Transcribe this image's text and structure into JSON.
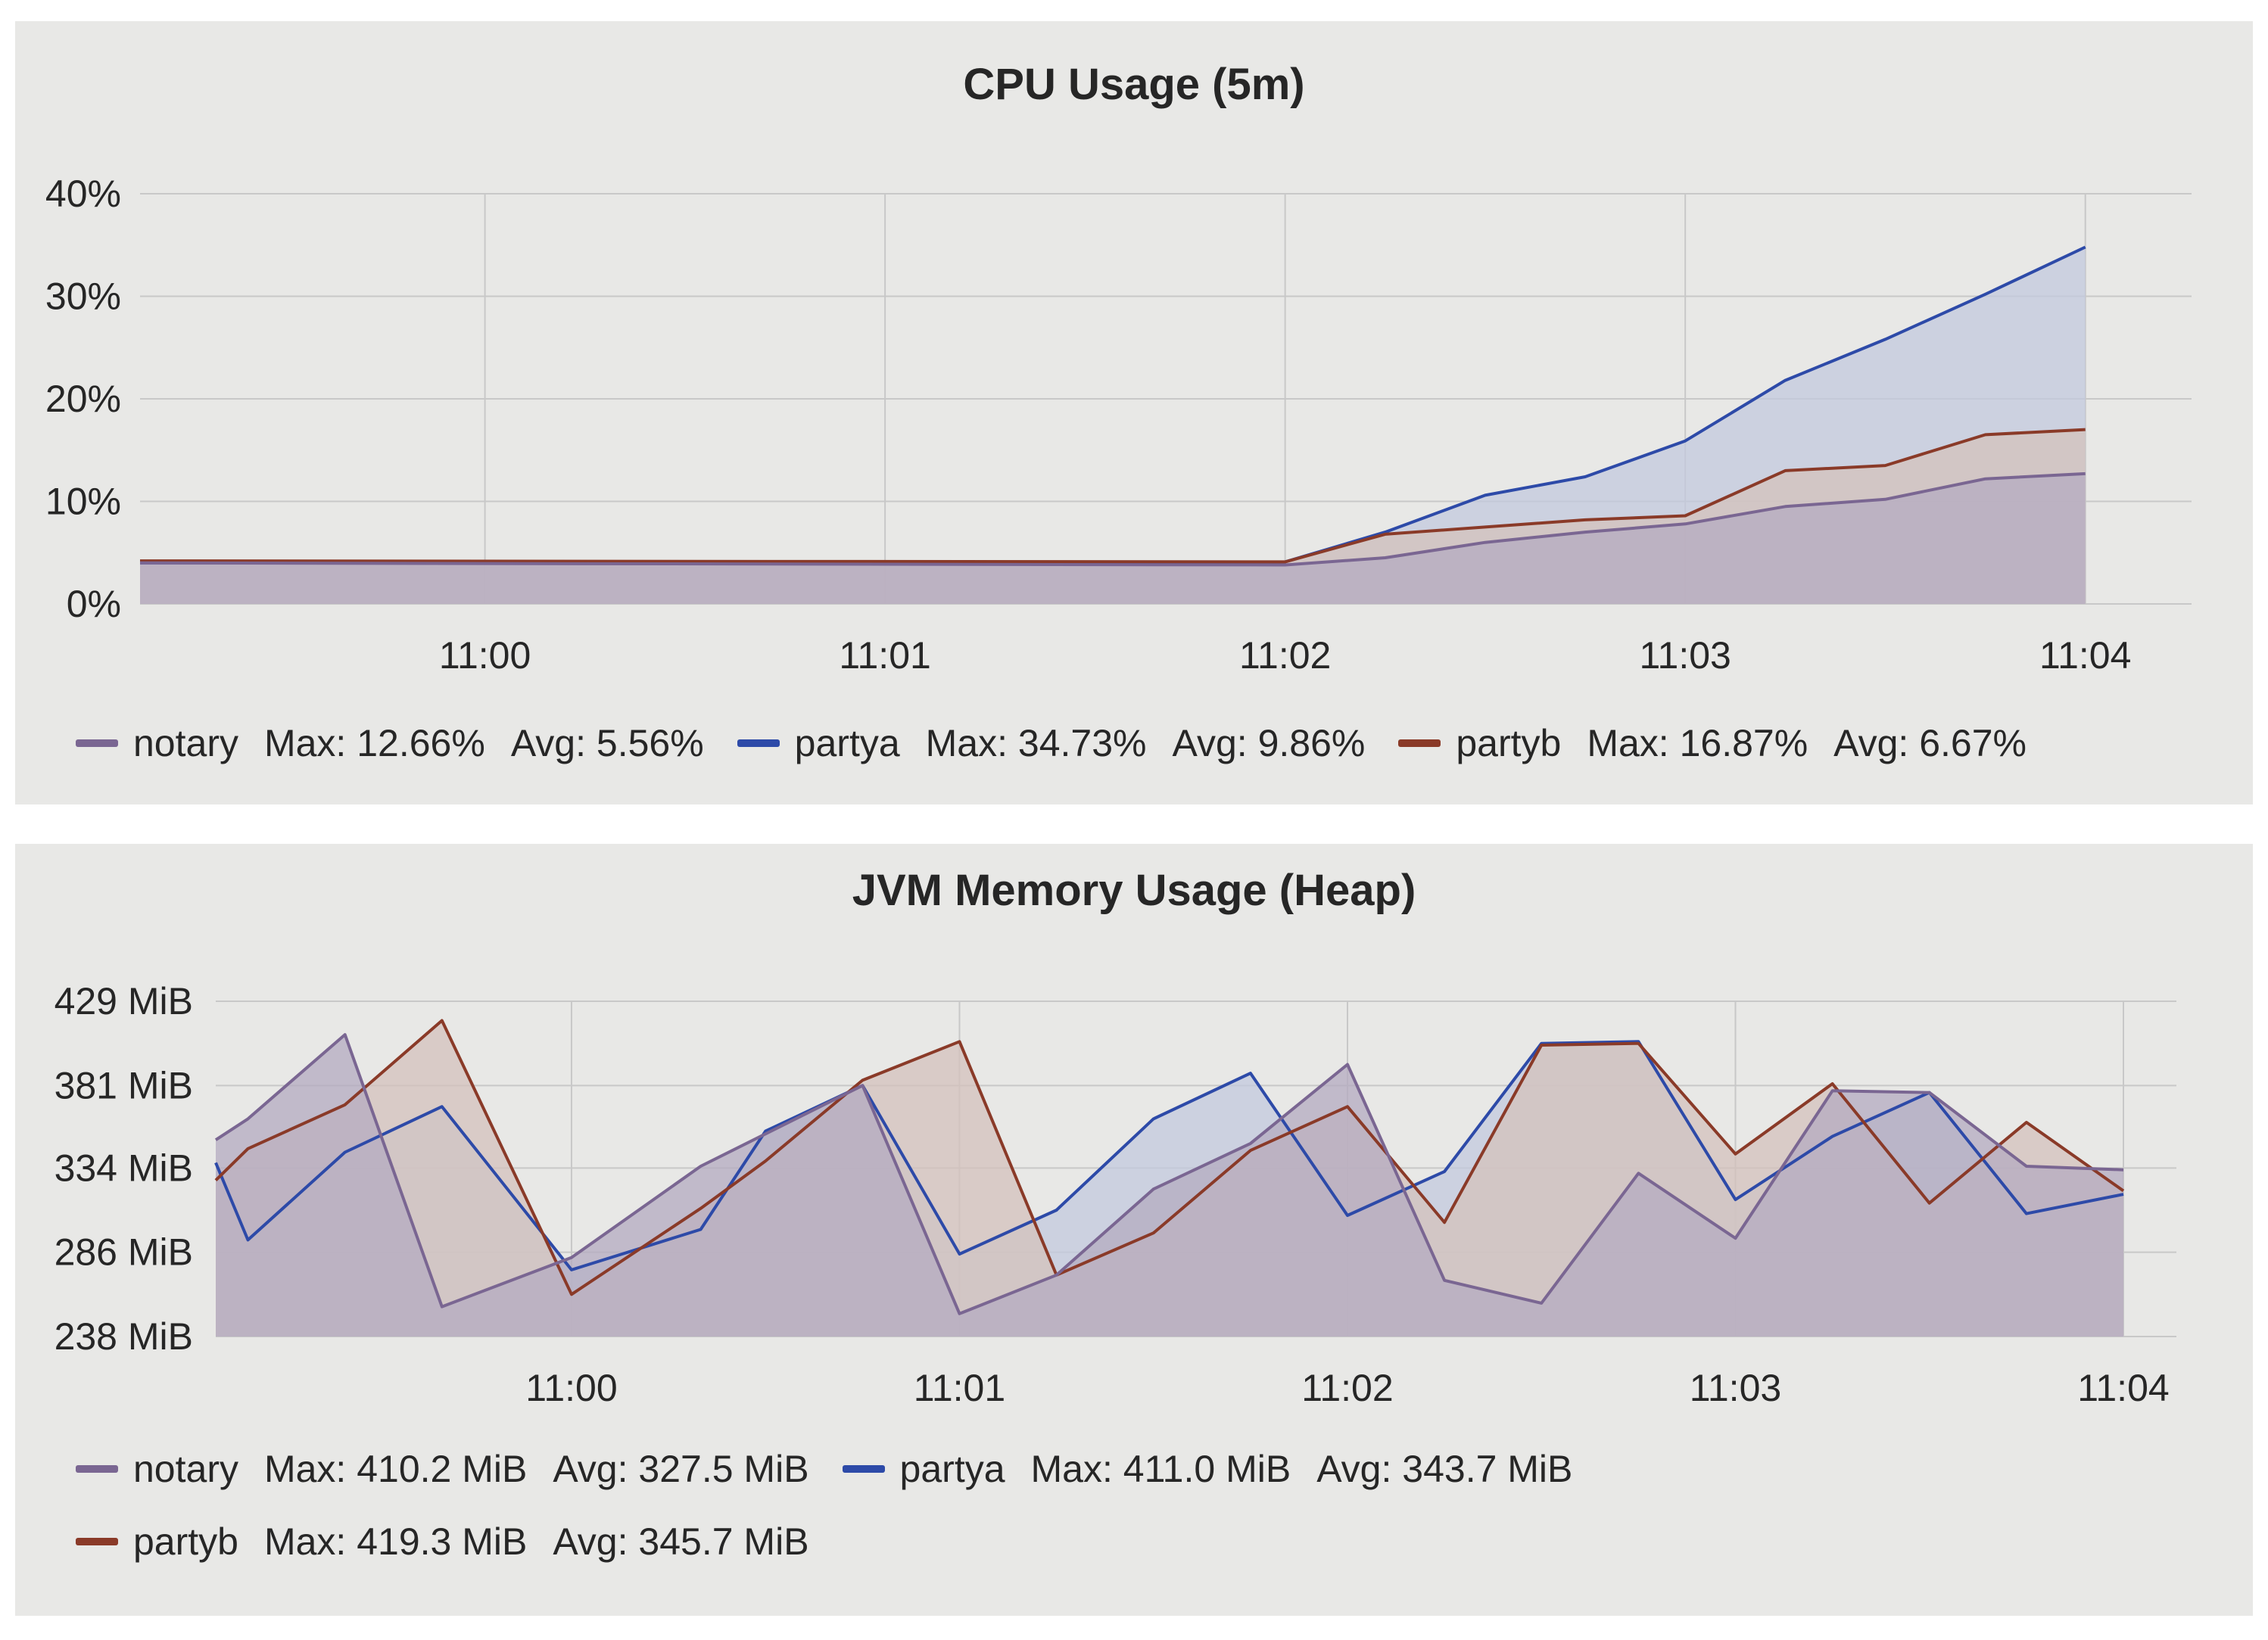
{
  "colors": {
    "notary": "#7a6692",
    "partya": "#2d4aa8",
    "partyb": "#8a3a28",
    "grid": "#c8c8c8",
    "fill": "#b9b3c4"
  },
  "panels": {
    "cpu": {
      "title": "CPU Usage (5m)",
      "legend": [
        {
          "name": "notary",
          "max_label": "Max:",
          "max": "12.66%",
          "avg_label": "Avg:",
          "avg": "5.56%"
        },
        {
          "name": "partya",
          "max_label": "Max:",
          "max": "34.73%",
          "avg_label": "Avg:",
          "avg": "9.86%"
        },
        {
          "name": "partyb",
          "max_label": "Max:",
          "max": "16.87%",
          "avg_label": "Avg:",
          "avg": "6.67%"
        }
      ]
    },
    "mem": {
      "title": "JVM Memory Usage (Heap)",
      "legend": [
        {
          "name": "notary",
          "max_label": "Max:",
          "max": "410.2 MiB",
          "avg_label": "Avg:",
          "avg": "327.5 MiB"
        },
        {
          "name": "partya",
          "max_label": "Max:",
          "max": "411.0 MiB",
          "avg_label": "Avg:",
          "avg": "343.7 MiB"
        },
        {
          "name": "partyb",
          "max_label": "Max:",
          "max": "419.3 MiB",
          "avg_label": "Avg:",
          "avg": "345.7 MiB"
        }
      ]
    }
  },
  "chart_data": [
    {
      "type": "area",
      "title": "CPU Usage (5m)",
      "x_ticks": [
        {
          "label": "11:00",
          "t": 0.862
        },
        {
          "label": "11:01",
          "t": 1.862
        },
        {
          "label": "11:02",
          "t": 2.862
        },
        {
          "label": "11:03",
          "t": 3.862
        },
        {
          "label": "11:04",
          "t": 4.862
        }
      ],
      "x_unit": "minutes",
      "xlim": [
        0,
        4.995
      ],
      "y_ticks": [
        {
          "label": "0%",
          "v": 0
        },
        {
          "label": "10%",
          "v": 10
        },
        {
          "label": "20%",
          "v": 20
        },
        {
          "label": "30%",
          "v": 30
        },
        {
          "label": "40%",
          "v": 40
        }
      ],
      "ylim": [
        0,
        40
      ],
      "grid": true,
      "legend_position": "bottom",
      "series": [
        {
          "name": "notary",
          "points": [
            [
              0,
              4.0
            ],
            [
              2.862,
              3.8
            ],
            [
              3.112,
              4.5
            ],
            [
              3.362,
              6.0
            ],
            [
              3.612,
              7.0
            ],
            [
              3.862,
              7.8
            ],
            [
              4.112,
              9.5
            ],
            [
              4.362,
              10.2
            ],
            [
              4.612,
              12.2
            ],
            [
              4.862,
              12.7
            ]
          ]
        },
        {
          "name": "partya",
          "points": [
            [
              0,
              4.0
            ],
            [
              2.862,
              4.1
            ],
            [
              3.112,
              7.0
            ],
            [
              3.362,
              10.6
            ],
            [
              3.612,
              12.4
            ],
            [
              3.862,
              15.9
            ],
            [
              4.112,
              21.8
            ],
            [
              4.362,
              25.8
            ],
            [
              4.612,
              30.2
            ],
            [
              4.862,
              34.8
            ]
          ]
        },
        {
          "name": "partyb",
          "points": [
            [
              0,
              4.2
            ],
            [
              2.862,
              4.1
            ],
            [
              3.112,
              6.8
            ],
            [
              3.362,
              7.5
            ],
            [
              3.612,
              8.2
            ],
            [
              3.862,
              8.6
            ],
            [
              4.112,
              13.0
            ],
            [
              4.362,
              13.5
            ],
            [
              4.612,
              16.5
            ],
            [
              4.862,
              17.0
            ]
          ]
        }
      ]
    },
    {
      "type": "area",
      "title": "JVM Memory Usage (Heap)",
      "x_ticks": [
        {
          "label": "11:00",
          "t": 0.917
        },
        {
          "label": "11:01",
          "t": 1.917
        },
        {
          "label": "11:02",
          "t": 2.917
        },
        {
          "label": "11:03",
          "t": 3.917
        },
        {
          "label": "11:04",
          "t": 4.917
        }
      ],
      "x_unit": "minutes",
      "xlim": [
        0,
        4.917
      ],
      "y_ticks": [
        {
          "label": "238 MiB",
          "v": 238
        },
        {
          "label": "286 MiB",
          "v": 286
        },
        {
          "label": "334 MiB",
          "v": 334
        },
        {
          "label": "381 MiB",
          "v": 381
        },
        {
          "label": "429 MiB",
          "v": 429
        }
      ],
      "ylim": [
        238,
        429
      ],
      "grid": true,
      "legend_position": "bottom",
      "series": [
        {
          "name": "notary",
          "points": [
            [
              0,
              350
            ],
            [
              0.083,
              362
            ],
            [
              0.333,
              410
            ],
            [
              0.583,
              255
            ],
            [
              0.917,
              283
            ],
            [
              1.25,
              335
            ],
            [
              1.667,
              381
            ],
            [
              1.917,
              251
            ],
            [
              2.167,
              273
            ],
            [
              2.417,
              322
            ],
            [
              2.667,
              348
            ],
            [
              2.917,
              393
            ],
            [
              3.167,
              270
            ],
            [
              3.417,
              257
            ],
            [
              3.667,
              331
            ],
            [
              3.917,
              294
            ],
            [
              4.167,
              378
            ],
            [
              4.417,
              377
            ],
            [
              4.667,
              335
            ],
            [
              4.917,
              333
            ]
          ]
        },
        {
          "name": "partya",
          "points": [
            [
              0,
              337
            ],
            [
              0.083,
              293
            ],
            [
              0.333,
              343
            ],
            [
              0.583,
              369
            ],
            [
              0.917,
              276
            ],
            [
              1.25,
              299
            ],
            [
              1.417,
              355
            ],
            [
              1.667,
              381
            ],
            [
              1.917,
              285
            ],
            [
              2.167,
              310
            ],
            [
              2.417,
              362
            ],
            [
              2.667,
              388
            ],
            [
              2.917,
              307
            ],
            [
              3.167,
              332
            ],
            [
              3.417,
              405
            ],
            [
              3.667,
              406
            ],
            [
              3.917,
              316
            ],
            [
              4.167,
              352
            ],
            [
              4.417,
              377
            ],
            [
              4.667,
              308
            ],
            [
              4.917,
              319
            ]
          ]
        },
        {
          "name": "partyb",
          "points": [
            [
              0,
              327
            ],
            [
              0.083,
              345
            ],
            [
              0.333,
              370
            ],
            [
              0.583,
              418
            ],
            [
              0.917,
              262
            ],
            [
              1.25,
              311
            ],
            [
              1.417,
              338
            ],
            [
              1.667,
              384
            ],
            [
              1.917,
              406
            ],
            [
              2.167,
              273
            ],
            [
              2.417,
              297
            ],
            [
              2.667,
              344
            ],
            [
              2.917,
              369
            ],
            [
              3.167,
              303
            ],
            [
              3.417,
              404
            ],
            [
              3.667,
              405
            ],
            [
              3.917,
              342
            ],
            [
              4.167,
              382
            ],
            [
              4.417,
              314
            ],
            [
              4.667,
              360
            ],
            [
              4.917,
              321
            ]
          ]
        }
      ]
    }
  ]
}
